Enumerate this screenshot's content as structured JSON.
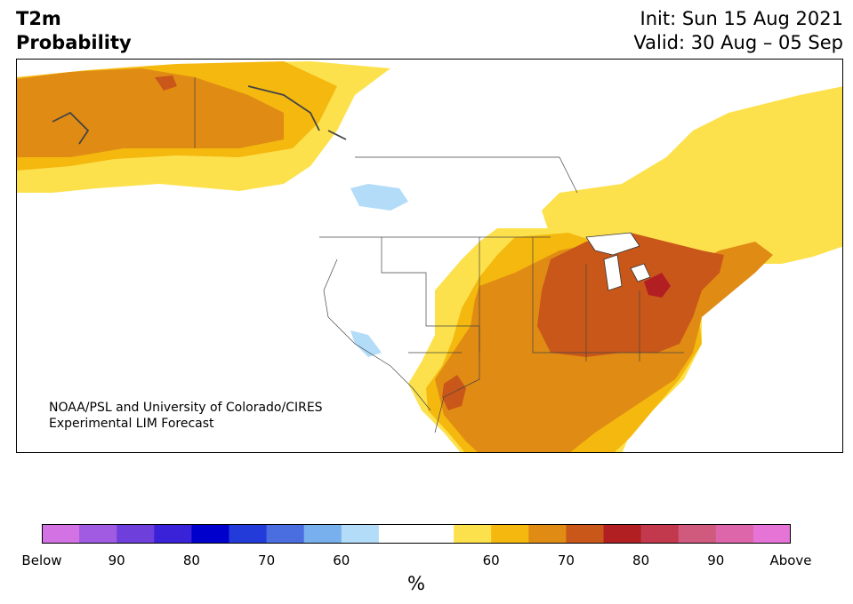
{
  "header": {
    "title_line1": "T2m",
    "title_line2": "Probability",
    "init": "Init: Sun 15 Aug 2021",
    "valid": "Valid: 30 Aug – 05 Sep"
  },
  "credit": {
    "line1": "NOAA/PSL and University of Colorado/CIRES",
    "line2": "Experimental LIM Forecast"
  },
  "colorbar": {
    "unit": "%",
    "colors": [
      "#d373e3",
      "#a15be3",
      "#6f3fdc",
      "#3a22d8",
      "#0000cc",
      "#233bd8",
      "#4a6ee0",
      "#78b0ee",
      "#b2dcf8",
      "#ffffff",
      "#ffffff",
      "#fde14c",
      "#f4b80f",
      "#e08b14",
      "#c95719",
      "#b11f23",
      "#c2384d",
      "#d05a7e",
      "#dc66a9",
      "#e674d6"
    ],
    "ticks": [
      "Below",
      "90",
      "80",
      "70",
      "60",
      "",
      "60",
      "70",
      "80",
      "90",
      "Above"
    ]
  },
  "map_colors": {
    "ocean": "#ffffff",
    "lake_blue": "#b2dcf8",
    "p60": "#fde14c",
    "p65": "#f4b80f",
    "p70": "#e08b14",
    "p75": "#c95719",
    "p80": "#b11f23"
  }
}
